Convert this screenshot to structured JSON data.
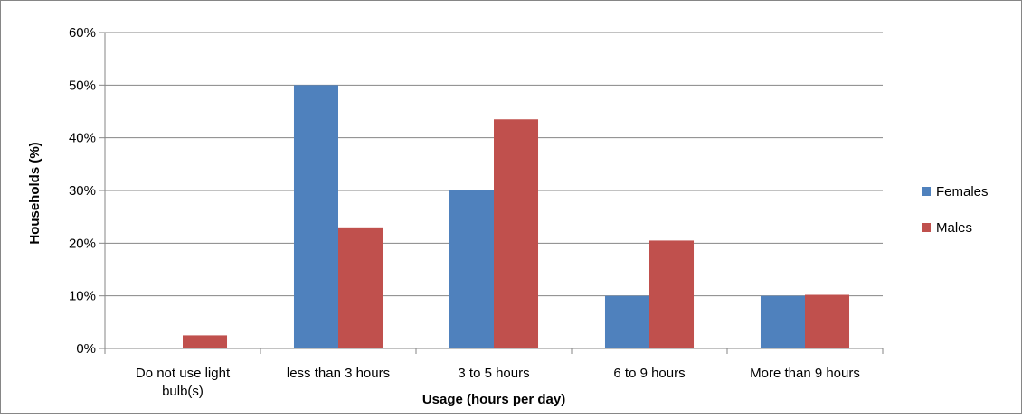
{
  "chart_data": {
    "type": "bar",
    "title": "",
    "xlabel": "Usage (hours per day)",
    "ylabel": "Households (%)",
    "ylim": [
      0,
      60
    ],
    "yticks": [
      "0%",
      "10%",
      "20%",
      "30%",
      "40%",
      "50%",
      "60%"
    ],
    "grid": true,
    "legend_position": "right",
    "categories": [
      [
        "Do not use light",
        "bulb(s)"
      ],
      [
        "less than 3 hours"
      ],
      [
        "3 to 5 hours"
      ],
      [
        "6 to 9 hours"
      ],
      [
        "More than 9 hours"
      ]
    ],
    "series": [
      {
        "name": "Females",
        "color": "#4F81BD",
        "values": [
          0,
          50,
          30,
          10,
          10
        ]
      },
      {
        "name": "Males",
        "color": "#C0504D",
        "values": [
          2.5,
          23,
          43.5,
          20.5,
          10.2
        ]
      }
    ]
  }
}
